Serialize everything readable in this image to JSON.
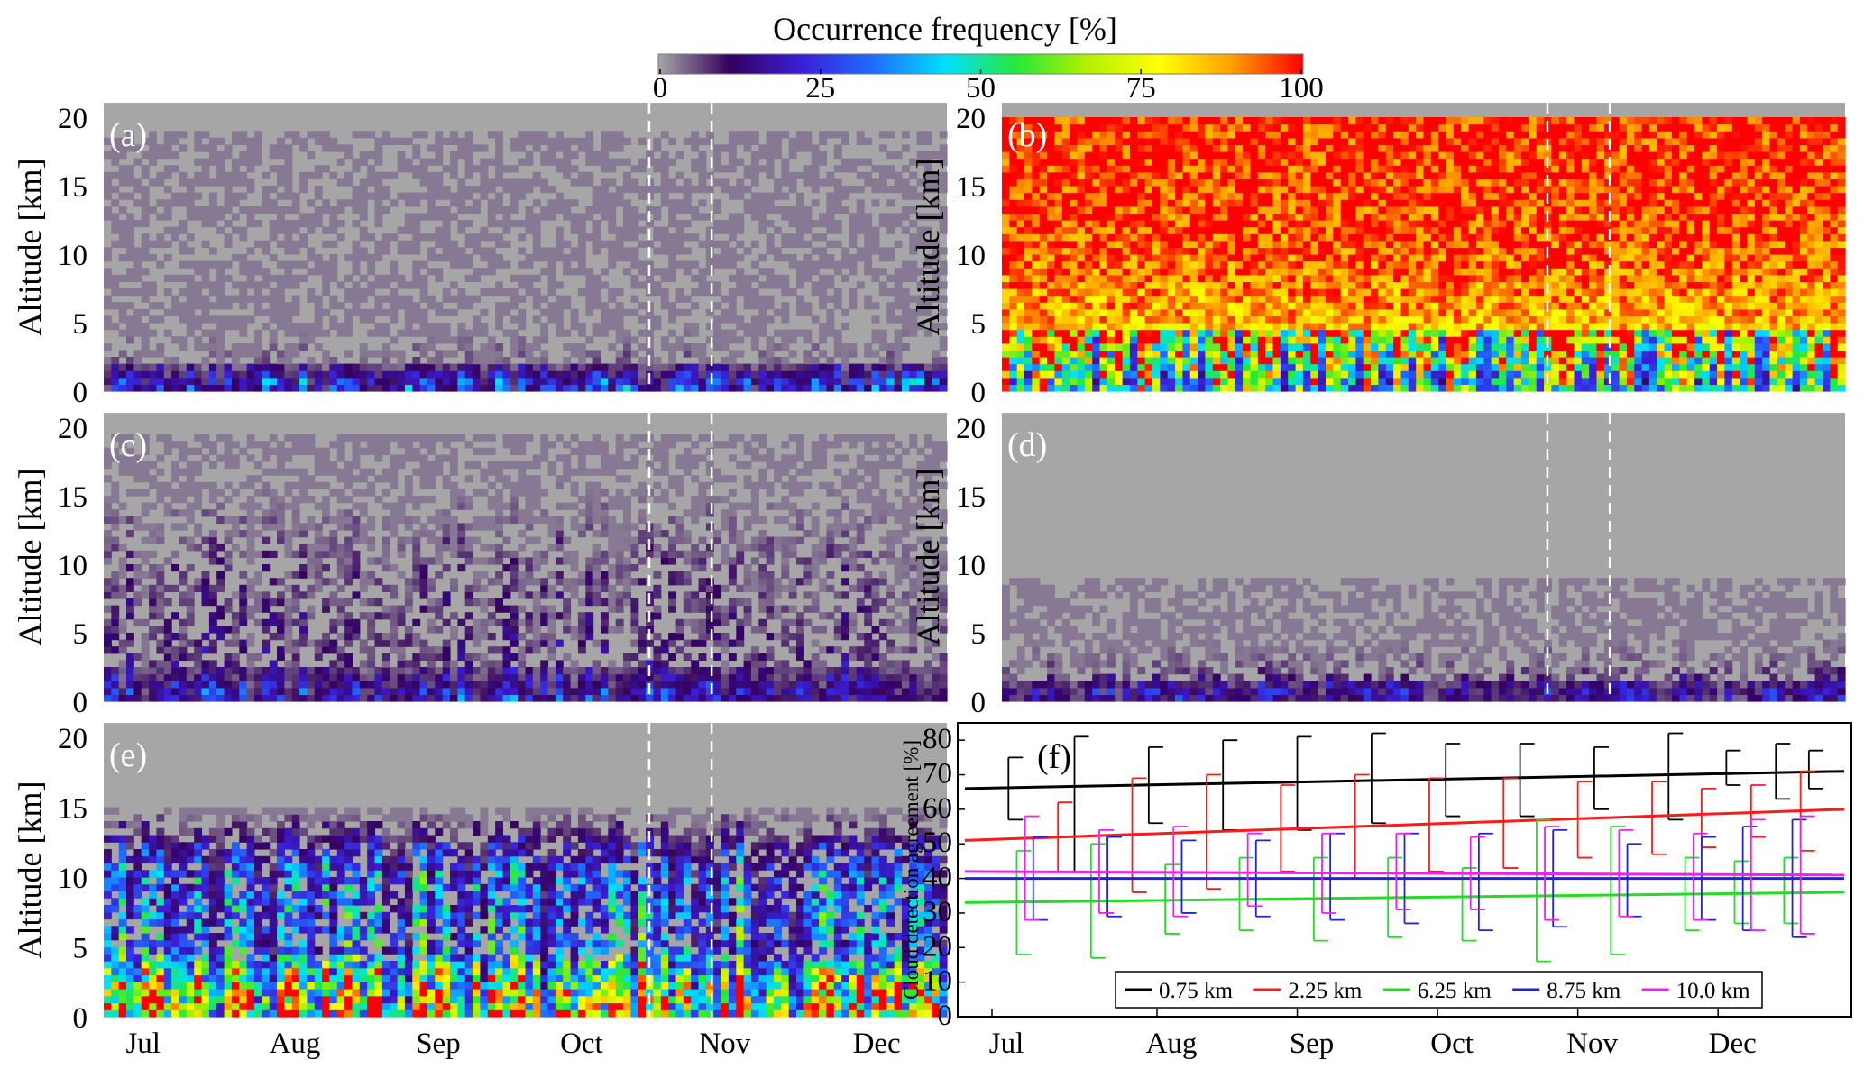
{
  "colorbar": {
    "title": "Occurrence frequency [%]",
    "ticks": [
      "0",
      "25",
      "50",
      "75",
      "100"
    ],
    "range": [
      0,
      100
    ],
    "colors": [
      "#a6a6a6",
      "#35005f",
      "#3a1fd6",
      "#1f6cff",
      "#00e0ff",
      "#26e83a",
      "#b6f000",
      "#ffff00",
      "#ffa000",
      "#ff0000"
    ]
  },
  "months": [
    "Jul",
    "Aug",
    "Sep",
    "Oct",
    "Nov",
    "Dec"
  ],
  "heatmap_axis": {
    "ylabel": "Altitude [km]",
    "yticks": [
      "0",
      "5",
      "10",
      "15",
      "20"
    ],
    "ylim": [
      0,
      20
    ]
  },
  "panels": [
    {
      "label": "(a)"
    },
    {
      "label": "(b)"
    },
    {
      "label": "(c)"
    },
    {
      "label": "(d)"
    },
    {
      "label": "(e)"
    }
  ],
  "panel_f": {
    "label": "(f)",
    "ylabel": "Cloud detection agreement [%]",
    "yticks": [
      "0",
      "10",
      "20",
      "30",
      "40",
      "50",
      "60",
      "70",
      "80"
    ]
  },
  "chart_data": [
    {
      "type": "heatmap",
      "panel": "(a)",
      "colormap": "Occurrence frequency [%]",
      "ylim": [
        0,
        20
      ],
      "xlim": [
        "Jul",
        "Dec"
      ],
      "profile": {
        "altitude_km": [
          0.75,
          2.25,
          5,
          10,
          15,
          20
        ],
        "occurrence_pct": [
          22,
          4,
          1,
          1,
          1,
          0
        ]
      },
      "dashed_lines": [
        "late Oct",
        "early Nov"
      ]
    },
    {
      "type": "heatmap",
      "panel": "(b)",
      "colormap": "Occurrence frequency [%]",
      "ylim": [
        0,
        20
      ],
      "xlim": [
        "Jul",
        "Dec"
      ],
      "profile": {
        "altitude_km": [
          0.75,
          2.25,
          5,
          10,
          15,
          20
        ],
        "occurrence_pct": [
          48,
          65,
          88,
          97,
          100,
          100
        ]
      },
      "dashed_lines": [
        "late Oct",
        "early Nov"
      ]
    },
    {
      "type": "heatmap",
      "panel": "(c)",
      "colormap": "Occurrence frequency [%]",
      "ylim": [
        0,
        20
      ],
      "xlim": [
        "Jul",
        "Dec"
      ],
      "profile": {
        "altitude_km": [
          0.75,
          2.25,
          5,
          10,
          15,
          20
        ],
        "occurrence_pct": [
          18,
          10,
          8,
          6,
          2,
          0
        ]
      },
      "dashed_lines": [
        "late Oct",
        "early Nov"
      ]
    },
    {
      "type": "heatmap",
      "panel": "(d)",
      "colormap": "Occurrence frequency [%]",
      "ylim": [
        0,
        20
      ],
      "xlim": [
        "Jul",
        "Dec"
      ],
      "profile": {
        "altitude_km": [
          0.75,
          2.25,
          5,
          10,
          15,
          20
        ],
        "occurrence_pct": [
          14,
          5,
          1,
          0,
          0,
          0
        ]
      },
      "dashed_lines": [
        "late Oct",
        "early Nov"
      ]
    },
    {
      "type": "heatmap",
      "panel": "(e)",
      "colormap": "Occurrence frequency [%]",
      "ylim": [
        0,
        20
      ],
      "xlim": [
        "Jul",
        "Dec"
      ],
      "profile": {
        "altitude_km": [
          0.75,
          2.25,
          5,
          10,
          15,
          20
        ],
        "occurrence_pct": [
          72,
          62,
          30,
          28,
          0,
          0
        ]
      },
      "dashed_lines": [
        "late Oct",
        "early Nov"
      ]
    },
    {
      "type": "line",
      "panel": "(f)",
      "ylabel": "Cloud detection agreement [%]",
      "ylim": [
        0,
        85
      ],
      "xlim": [
        "Jul",
        "Dec"
      ],
      "legend": "bottom",
      "series": [
        {
          "name": "0.75 km",
          "color": "#000000",
          "trend": [
            66,
            71
          ],
          "errorbars": [
            {
              "x": 0.02,
              "mean": 66,
              "lo": 57,
              "hi": 75
            },
            {
              "x": 0.1,
              "mean": 61,
              "lo": 42,
              "hi": 81
            },
            {
              "x": 0.19,
              "mean": 66,
              "lo": 56,
              "hi": 78
            },
            {
              "x": 0.28,
              "mean": 67,
              "lo": 54,
              "hi": 80
            },
            {
              "x": 0.37,
              "mean": 68,
              "lo": 54,
              "hi": 81
            },
            {
              "x": 0.46,
              "mean": 69,
              "lo": 56,
              "hi": 82
            },
            {
              "x": 0.55,
              "mean": 68,
              "lo": 58,
              "hi": 79
            },
            {
              "x": 0.64,
              "mean": 69,
              "lo": 58,
              "hi": 79
            },
            {
              "x": 0.73,
              "mean": 69,
              "lo": 60,
              "hi": 78
            },
            {
              "x": 0.82,
              "mean": 70,
              "lo": 57,
              "hi": 82
            },
            {
              "x": 0.89,
              "mean": 72,
              "lo": 67,
              "hi": 77
            },
            {
              "x": 0.95,
              "mean": 71,
              "lo": 63,
              "hi": 79
            },
            {
              "x": 0.99,
              "mean": 72,
              "lo": 66,
              "hi": 77
            }
          ]
        },
        {
          "name": "2.25 km",
          "color": "#ff1a1a",
          "trend": [
            51,
            60
          ],
          "errorbars": [
            {
              "x": 0.08,
              "mean": 52,
              "lo": 42,
              "hi": 62
            },
            {
              "x": 0.17,
              "mean": 52,
              "lo": 36,
              "hi": 69
            },
            {
              "x": 0.26,
              "mean": 53,
              "lo": 37,
              "hi": 70
            },
            {
              "x": 0.35,
              "mean": 54,
              "lo": 42,
              "hi": 67
            },
            {
              "x": 0.44,
              "mean": 55,
              "lo": 40,
              "hi": 70
            },
            {
              "x": 0.53,
              "mean": 56,
              "lo": 42,
              "hi": 69
            },
            {
              "x": 0.62,
              "mean": 56,
              "lo": 43,
              "hi": 69
            },
            {
              "x": 0.71,
              "mean": 57,
              "lo": 46,
              "hi": 68
            },
            {
              "x": 0.8,
              "mean": 58,
              "lo": 47,
              "hi": 68
            },
            {
              "x": 0.86,
              "mean": 58,
              "lo": 49,
              "hi": 66
            },
            {
              "x": 0.92,
              "mean": 59,
              "lo": 52,
              "hi": 67
            },
            {
              "x": 0.98,
              "mean": 60,
              "lo": 48,
              "hi": 71
            }
          ]
        },
        {
          "name": "6.25 km",
          "color": "#22dd22",
          "trend": [
            33,
            36
          ],
          "errorbars": [
            {
              "x": 0.03,
              "mean": 33,
              "lo": 18,
              "hi": 48
            },
            {
              "x": 0.12,
              "mean": 34,
              "lo": 17,
              "hi": 50
            },
            {
              "x": 0.21,
              "mean": 34,
              "lo": 24,
              "hi": 44
            },
            {
              "x": 0.3,
              "mean": 35,
              "lo": 25,
              "hi": 46
            },
            {
              "x": 0.39,
              "mean": 35,
              "lo": 22,
              "hi": 46
            },
            {
              "x": 0.48,
              "mean": 35,
              "lo": 23,
              "hi": 46
            },
            {
              "x": 0.57,
              "mean": 35,
              "lo": 22,
              "hi": 43
            },
            {
              "x": 0.66,
              "mean": 36,
              "lo": 16,
              "hi": 57
            },
            {
              "x": 0.75,
              "mean": 36,
              "lo": 18,
              "hi": 55
            },
            {
              "x": 0.84,
              "mean": 36,
              "lo": 25,
              "hi": 46
            },
            {
              "x": 0.9,
              "mean": 36,
              "lo": 27,
              "hi": 45
            },
            {
              "x": 0.96,
              "mean": 36,
              "lo": 27,
              "hi": 46
            }
          ]
        },
        {
          "name": "8.75 km",
          "color": "#2222dd",
          "trend": [
            40,
            40
          ],
          "errorbars": [
            {
              "x": 0.05,
              "mean": 40,
              "lo": 28,
              "hi": 52
            },
            {
              "x": 0.14,
              "mean": 40,
              "lo": 29,
              "hi": 52
            },
            {
              "x": 0.23,
              "mean": 40,
              "lo": 30,
              "hi": 51
            },
            {
              "x": 0.32,
              "mean": 40,
              "lo": 29,
              "hi": 51
            },
            {
              "x": 0.41,
              "mean": 40,
              "lo": 28,
              "hi": 53
            },
            {
              "x": 0.5,
              "mean": 40,
              "lo": 27,
              "hi": 53
            },
            {
              "x": 0.59,
              "mean": 40,
              "lo": 25,
              "hi": 53
            },
            {
              "x": 0.68,
              "mean": 40,
              "lo": 26,
              "hi": 54
            },
            {
              "x": 0.77,
              "mean": 40,
              "lo": 29,
              "hi": 50
            },
            {
              "x": 0.86,
              "mean": 40,
              "lo": 28,
              "hi": 52
            },
            {
              "x": 0.91,
              "mean": 40,
              "lo": 25,
              "hi": 55
            },
            {
              "x": 0.97,
              "mean": 40,
              "lo": 23,
              "hi": 57
            }
          ]
        },
        {
          "name": "10.0 km",
          "color": "#ee22ee",
          "trend": [
            42,
            41
          ],
          "errorbars": [
            {
              "x": 0.04,
              "mean": 42,
              "lo": 28,
              "hi": 58
            },
            {
              "x": 0.13,
              "mean": 42,
              "lo": 30,
              "hi": 54
            },
            {
              "x": 0.22,
              "mean": 42,
              "lo": 29,
              "hi": 55
            },
            {
              "x": 0.31,
              "mean": 42,
              "lo": 32,
              "hi": 53
            },
            {
              "x": 0.4,
              "mean": 42,
              "lo": 30,
              "hi": 53
            },
            {
              "x": 0.49,
              "mean": 41,
              "lo": 31,
              "hi": 53
            },
            {
              "x": 0.58,
              "mean": 41,
              "lo": 31,
              "hi": 52
            },
            {
              "x": 0.67,
              "mean": 41,
              "lo": 28,
              "hi": 55
            },
            {
              "x": 0.76,
              "mean": 41,
              "lo": 29,
              "hi": 54
            },
            {
              "x": 0.85,
              "mean": 41,
              "lo": 28,
              "hi": 53
            },
            {
              "x": 0.92,
              "mean": 41,
              "lo": 25,
              "hi": 57
            },
            {
              "x": 0.98,
              "mean": 41,
              "lo": 24,
              "hi": 58
            }
          ]
        }
      ]
    }
  ]
}
